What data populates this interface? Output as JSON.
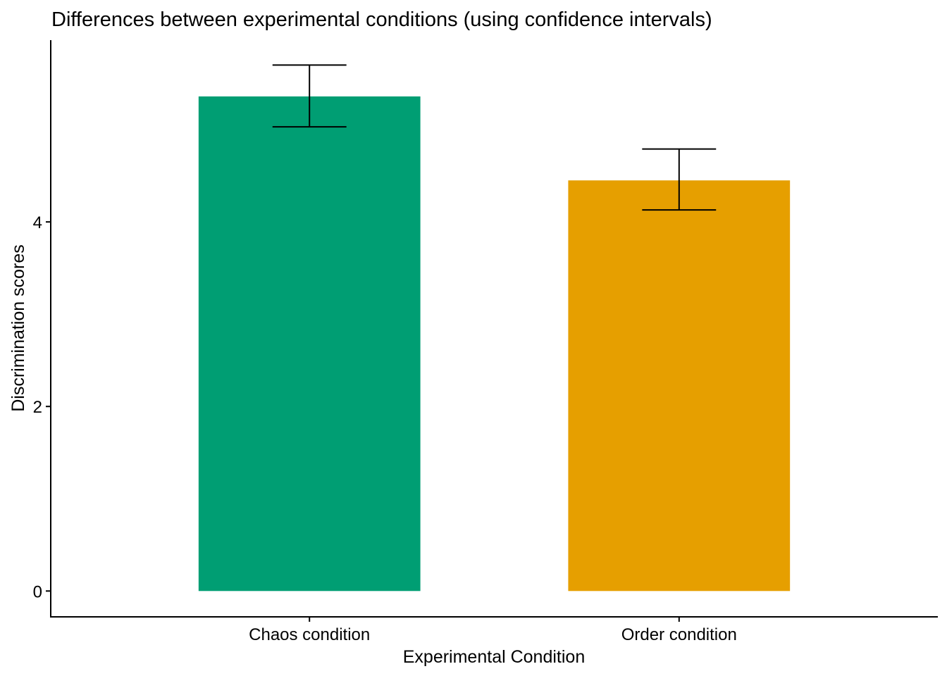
{
  "chart_data": {
    "type": "bar",
    "title": "Differences between experimental conditions (using confidence intervals)",
    "xlabel": "Experimental Condition",
    "ylabel": "Discrimination scores",
    "categories": [
      "Chaos condition",
      "Order condition"
    ],
    "values": [
      5.36,
      4.45
    ],
    "error_low": [
      5.03,
      4.13
    ],
    "error_high": [
      5.7,
      4.79
    ],
    "colors": [
      "#009E73",
      "#E69F00"
    ],
    "yticks": [
      0,
      2,
      4
    ],
    "ylim": [
      -0.28,
      5.97
    ],
    "grid": false,
    "legend": "none"
  }
}
